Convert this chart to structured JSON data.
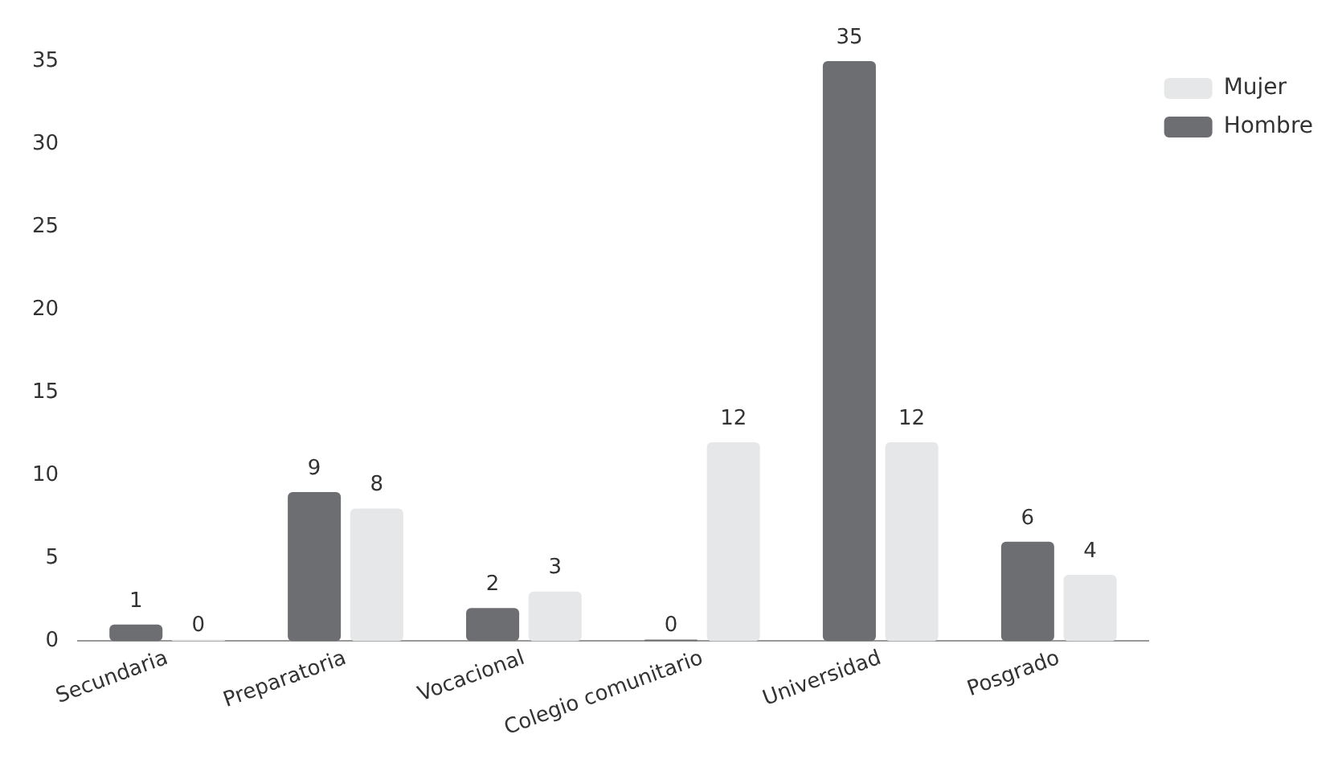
{
  "chart_data": {
    "type": "bar",
    "categories": [
      "Secundaria",
      "Preparatoria",
      "Vocacional",
      "Colegio comunitario",
      "Universidad",
      "Posgrado"
    ],
    "series": [
      {
        "name": "Hombre",
        "color": "#6d6e71",
        "values": [
          1,
          9,
          2,
          0,
          35,
          6
        ]
      },
      {
        "name": "Mujer",
        "color": "#e6e7e8",
        "values": [
          0,
          8,
          3,
          12,
          12,
          4
        ]
      }
    ],
    "ylim": [
      0,
      35
    ],
    "yticks": [
      0,
      5,
      10,
      15,
      20,
      25,
      30,
      35
    ],
    "grid": false,
    "legend": "top right",
    "data_labels": true
  }
}
